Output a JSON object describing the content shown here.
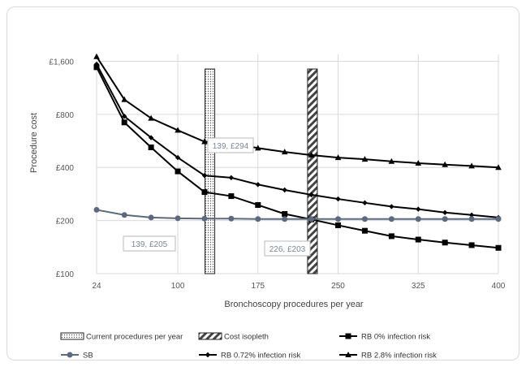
{
  "chart_data": {
    "type": "line",
    "xlabel": "Bronchoscopy procedures per year",
    "ylabel": "Procedure cost",
    "x_ticks": [
      24,
      100,
      175,
      250,
      325,
      400
    ],
    "y_scale": "log2",
    "y_ticks": [
      {
        "value": 100,
        "label": "£100"
      },
      {
        "value": 200,
        "label": "£200"
      },
      {
        "value": 400,
        "label": "£400"
      },
      {
        "value": 800,
        "label": "£800"
      },
      {
        "value": 1600,
        "label": "£1,600"
      }
    ],
    "xlim": [
      24,
      400
    ],
    "ylim": [
      100,
      1750
    ],
    "grid": true,
    "legend_position": "bottom",
    "x": [
      24,
      50,
      75,
      100,
      125,
      150,
      175,
      200,
      225,
      250,
      275,
      300,
      325,
      350,
      375,
      400
    ],
    "series": [
      {
        "name": "SB",
        "color": "#5b6a7e",
        "marker": "circle",
        "values": [
          230,
          215,
          208,
          206,
          205,
          205,
          204,
          204,
          204,
          204,
          204,
          204,
          204,
          204,
          204,
          204
        ]
      },
      {
        "name": "RB 0% infection risk",
        "color": "#000000",
        "marker": "square",
        "values": [
          1480,
          720,
          520,
          380,
          290,
          275,
          245,
          218,
          203,
          188,
          175,
          163,
          156,
          150,
          145,
          140
        ]
      },
      {
        "name": "RB 0.72% infection risk",
        "color": "#000000",
        "marker": "diamond",
        "values": [
          1540,
          780,
          590,
          455,
          360,
          350,
          320,
          298,
          280,
          265,
          252,
          240,
          232,
          222,
          215,
          208
        ]
      },
      {
        "name": "RB 2.8% infection risk",
        "color": "#000000",
        "marker": "triangle",
        "values": [
          1700,
          970,
          760,
          650,
          560,
          550,
          515,
          490,
          470,
          455,
          445,
          433,
          423,
          415,
          408,
          400
        ]
      }
    ],
    "bands": [
      {
        "name": "Current procedures per year",
        "x": 130,
        "pattern": "dots"
      },
      {
        "name": "Cost isopleth",
        "x": 226,
        "pattern": "hatch"
      }
    ],
    "annotations": [
      {
        "text": "139,  £294",
        "x": 139,
        "y": 294
      },
      {
        "text": "139,  £205",
        "x": 139,
        "y": 205
      },
      {
        "text": "226,  £203",
        "x": 226,
        "y": 203
      }
    ]
  }
}
